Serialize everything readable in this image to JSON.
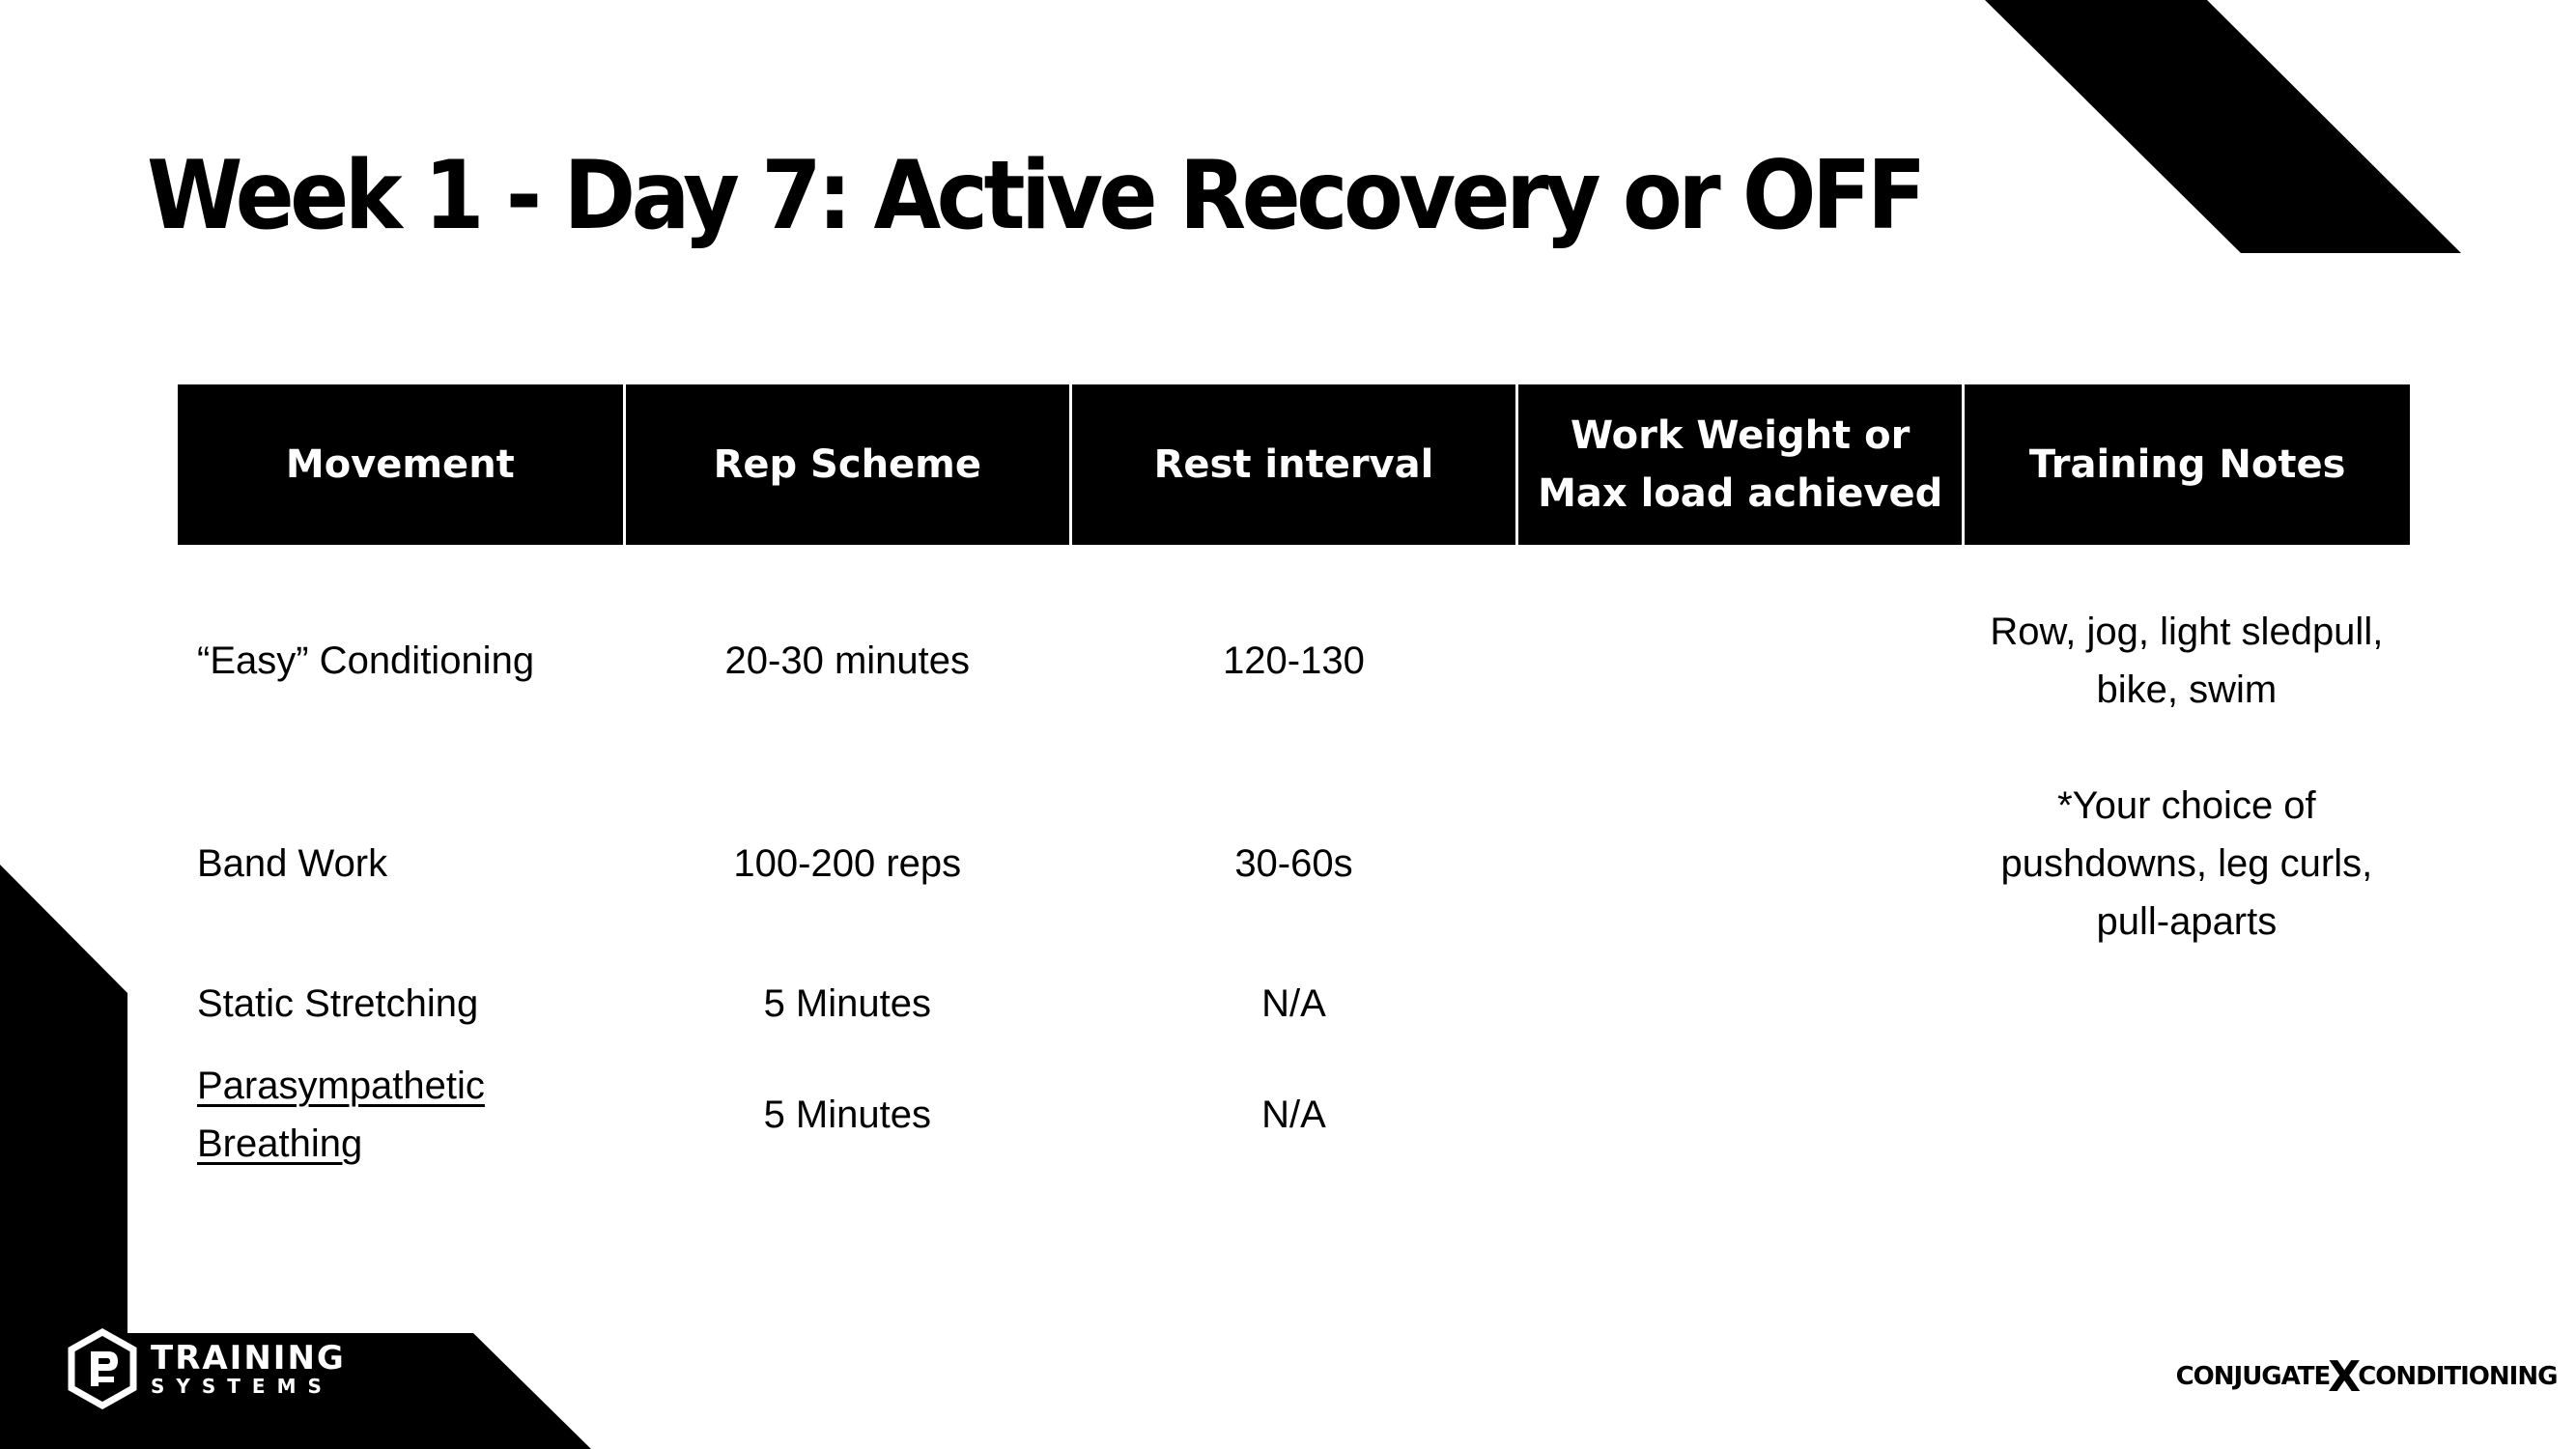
{
  "title": "Week 1 - Day 7: Active Recovery or OFF",
  "table": {
    "headers": [
      "Movement",
      "Rep Scheme",
      "Rest interval",
      "Work Weight or Max load achieved",
      "Training Notes"
    ],
    "rows": [
      {
        "movement": "“Easy” Conditioning",
        "rep_scheme": "20-30 minutes",
        "rest": "120-130",
        "work_weight": "",
        "notes": "Row, jog, light sledpull, bike, swim"
      },
      {
        "movement": "Band Work",
        "rep_scheme": "100-200 reps",
        "rest": "30-60s",
        "work_weight": "",
        "notes": "*Your choice of pushdowns, leg curls, pull-aparts"
      },
      {
        "movement": "Static Stretching",
        "rep_scheme": "5 Minutes",
        "rest": "N/A",
        "work_weight": "",
        "notes": ""
      },
      {
        "movement": "Parasympathetic Breathing",
        "rep_scheme": "5 Minutes",
        "rest": "N/A",
        "work_weight": "",
        "notes": ""
      }
    ]
  },
  "brand_left": {
    "line1": "TRAINING",
    "line2": "SYSTEMS",
    "icon": "pb-hexagon-logo-icon"
  },
  "brand_right": {
    "part1": "CONJUGATE",
    "mark": "X",
    "part2": "CONDITIONING"
  },
  "colors": {
    "background": "#ffffff",
    "ink": "#000000",
    "header_bg": "#000000",
    "header_text": "#ffffff"
  }
}
